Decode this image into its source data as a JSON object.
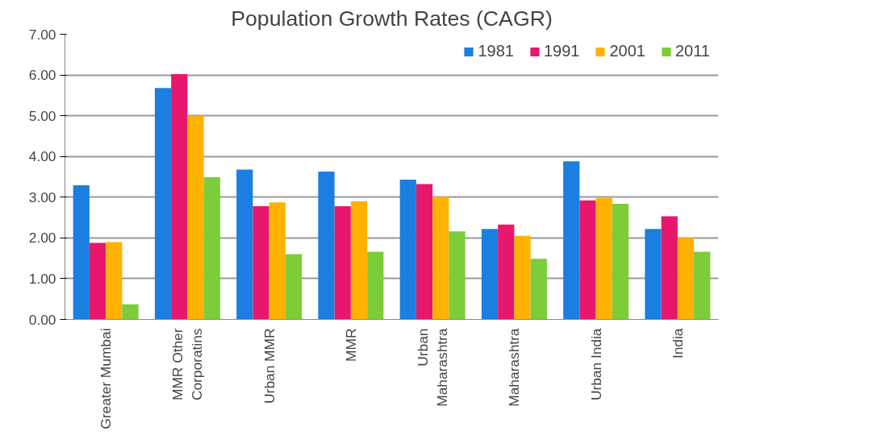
{
  "chart_data": {
    "type": "bar",
    "title": "Population Growth Rates (CAGR)",
    "categories": [
      "Greater Mumbai",
      "MMR Other\nCorporatins",
      "Urban MMR",
      "MMR",
      "Urban\nMaharashtra",
      "Maharashtra",
      "Urban India",
      "India"
    ],
    "series": [
      {
        "name": "1981",
        "color": "#1a7fe0",
        "values": [
          3.29,
          5.68,
          3.68,
          3.63,
          3.43,
          2.22,
          3.88,
          2.22
        ]
      },
      {
        "name": "1991",
        "color": "#e8176e",
        "values": [
          1.88,
          6.02,
          2.78,
          2.78,
          3.32,
          2.33,
          2.92,
          2.53
        ]
      },
      {
        "name": "2001",
        "color": "#ffb300",
        "values": [
          1.9,
          5.0,
          2.87,
          2.9,
          3.01,
          2.05,
          2.98,
          2.0
        ]
      },
      {
        "name": "2011",
        "color": "#7dcc3a",
        "values": [
          0.37,
          3.49,
          1.6,
          1.66,
          2.16,
          1.49,
          2.84,
          1.66
        ]
      }
    ],
    "ylim": [
      0,
      7
    ],
    "yticks": [
      {
        "value": 0,
        "label": "0.00"
      },
      {
        "value": 1,
        "label": "1.00"
      },
      {
        "value": 2,
        "label": "2.00"
      },
      {
        "value": 3,
        "label": "3.00"
      },
      {
        "value": 4,
        "label": "4.00"
      },
      {
        "value": 5,
        "label": "5.00"
      },
      {
        "value": 6,
        "label": "6.00"
      },
      {
        "value": 7,
        "label": "7.00"
      }
    ],
    "grid": "y",
    "legend": "top right"
  }
}
